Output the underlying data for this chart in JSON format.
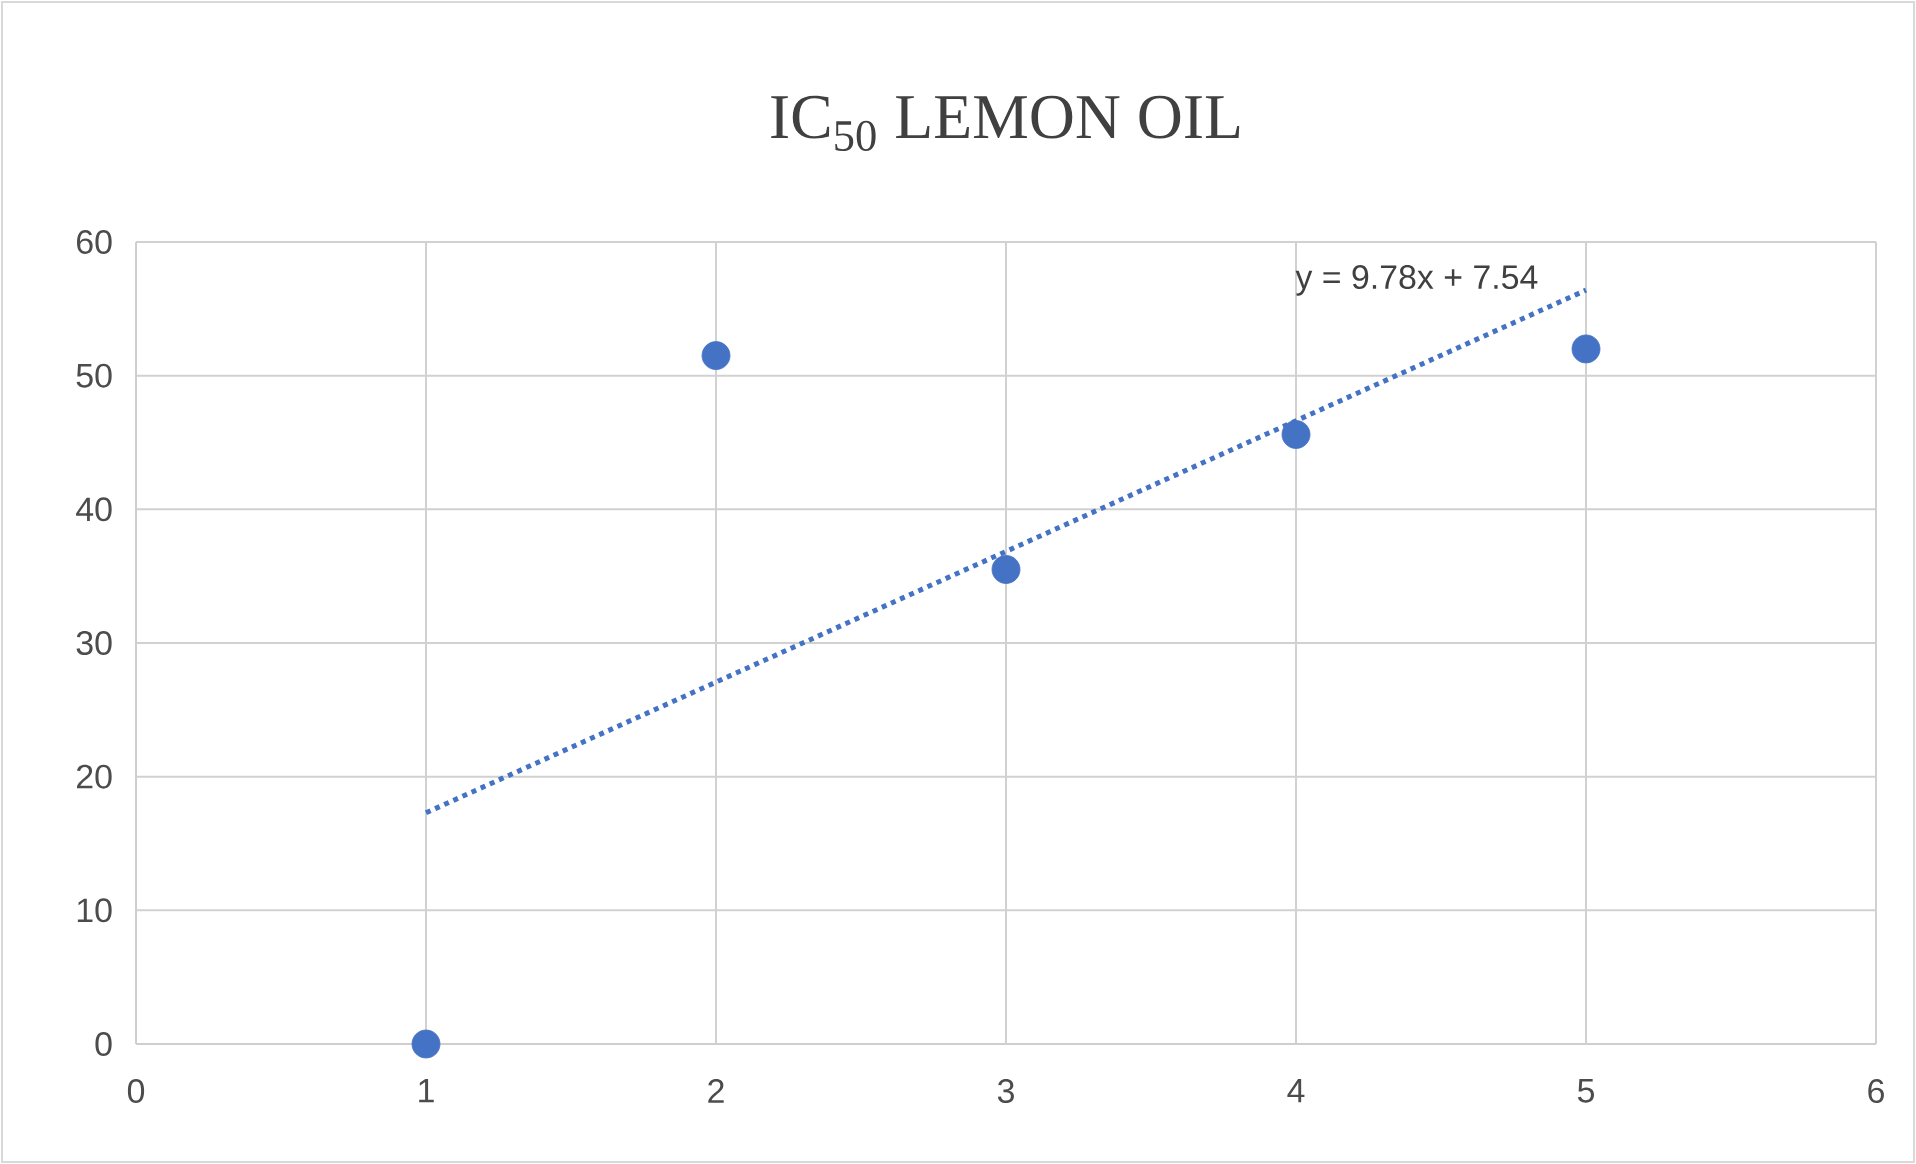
{
  "chart_data": {
    "type": "scatter",
    "title": "IC$_{50}$ LEMON OIL",
    "series": [
      {
        "color": "#4472c4",
        "marker": "circle",
        "x": [
          1,
          2,
          3,
          4,
          5
        ],
        "values": [
          0,
          51.5,
          35.5,
          45.6,
          52
        ]
      },
      {
        "type": "line",
        "color": "#4472c4",
        "marker": "none",
        "line_style": "dotted",
        "x": [
          1,
          5
        ],
        "values": [
          17.3,
          56.4
        ]
      }
    ],
    "annotations": [
      "y = 9.78x + 7.54"
    ],
    "xlim": [
      0,
      6
    ],
    "xticks": [
      0,
      1,
      2,
      3,
      4,
      5,
      6
    ],
    "ylim": [
      0,
      60
    ],
    "yticks": [
      0,
      10,
      20,
      30,
      40,
      50,
      60
    ],
    "grid": true
  }
}
